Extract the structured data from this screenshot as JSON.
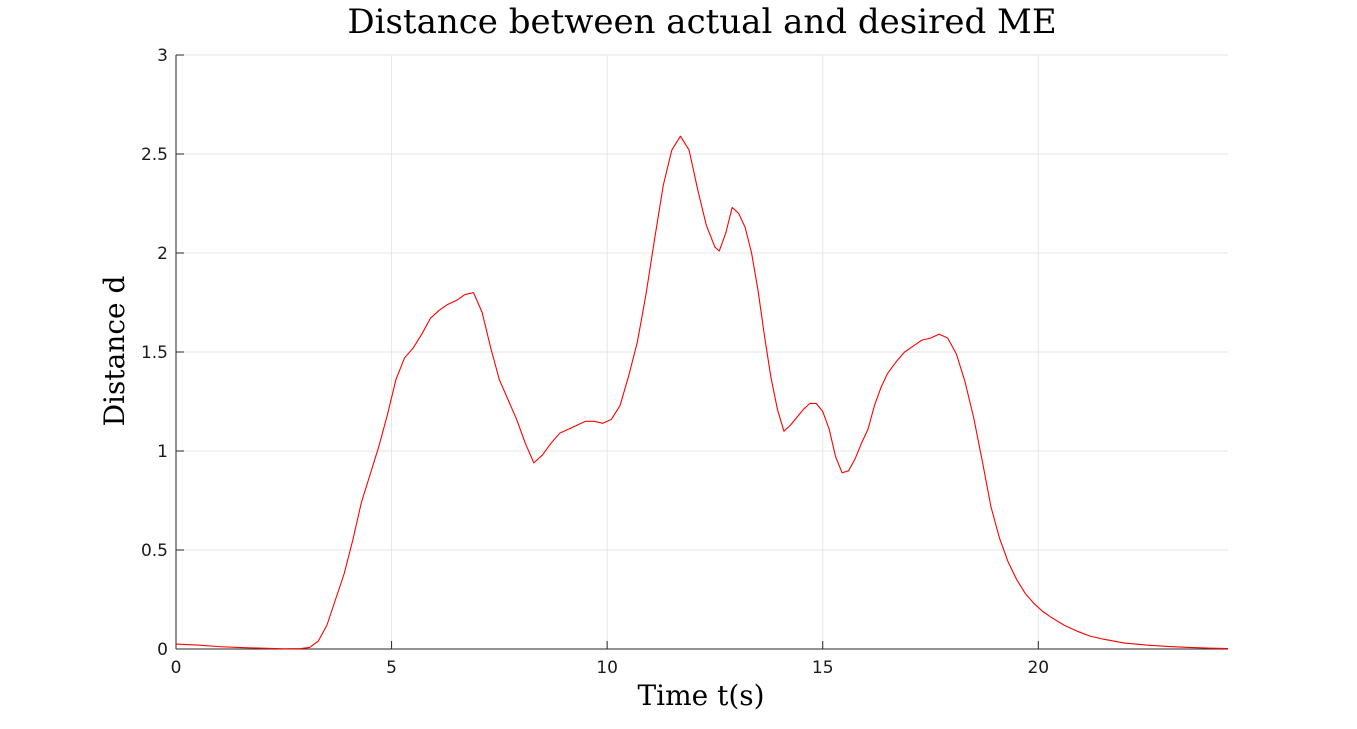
{
  "chart_data": {
    "type": "line",
    "title": "Distance between actual and desired ME",
    "xlabel": "Time t(s)",
    "ylabel": "Distance d",
    "xlim": [
      0,
      24.4
    ],
    "ylim": [
      0,
      3
    ],
    "x_ticks": [
      0,
      5,
      10,
      15,
      20
    ],
    "x_tick_labels": [
      "0",
      "5",
      "10",
      "15",
      "20"
    ],
    "y_ticks": [
      0,
      0.5,
      1,
      1.5,
      2,
      2.5,
      3
    ],
    "y_tick_labels": [
      "0",
      "0.5",
      "1",
      "1.5",
      "2",
      "2.5",
      "3"
    ],
    "grid": true,
    "line_color": "#ff0000",
    "series": [
      {
        "x": [
          0,
          0.5,
          1.0,
          1.5,
          2.0,
          2.5,
          2.9,
          3.1,
          3.3,
          3.5,
          3.7,
          3.9,
          4.1,
          4.3,
          4.5,
          4.7,
          4.9,
          5.1,
          5.3,
          5.5,
          5.7,
          5.9,
          6.1,
          6.3,
          6.5,
          6.7,
          6.9,
          7.1,
          7.3,
          7.5,
          7.7,
          7.9,
          8.1,
          8.3,
          8.5,
          8.7,
          8.9,
          9.1,
          9.3,
          9.5,
          9.7,
          9.9,
          10.1,
          10.3,
          10.5,
          10.7,
          10.9,
          11.1,
          11.3,
          11.5,
          11.7,
          11.9,
          12.1,
          12.3,
          12.5,
          12.6,
          12.75,
          12.9,
          13.05,
          13.2,
          13.35,
          13.5,
          13.65,
          13.8,
          13.95,
          14.1,
          14.25,
          14.4,
          14.55,
          14.7,
          14.85,
          15.0,
          15.15,
          15.3,
          15.45,
          15.6,
          15.75,
          15.9,
          16.05,
          16.2,
          16.35,
          16.5,
          16.7,
          16.9,
          17.1,
          17.3,
          17.5,
          17.7,
          17.9,
          18.1,
          18.3,
          18.5,
          18.7,
          18.9,
          19.1,
          19.3,
          19.5,
          19.7,
          19.9,
          20.1,
          20.3,
          20.6,
          20.9,
          21.2,
          21.5,
          22.0,
          22.5,
          23.0,
          23.5,
          24.0,
          24.4
        ],
        "y": [
          0.025,
          0.02,
          0.012,
          0.007,
          0.004,
          0.001,
          0.002,
          0.008,
          0.04,
          0.12,
          0.25,
          0.38,
          0.55,
          0.74,
          0.88,
          1.02,
          1.18,
          1.36,
          1.47,
          1.52,
          1.59,
          1.67,
          1.71,
          1.74,
          1.76,
          1.79,
          1.8,
          1.7,
          1.52,
          1.36,
          1.26,
          1.16,
          1.04,
          0.94,
          0.98,
          1.04,
          1.09,
          1.11,
          1.13,
          1.15,
          1.15,
          1.14,
          1.16,
          1.23,
          1.38,
          1.55,
          1.79,
          2.07,
          2.34,
          2.52,
          2.59,
          2.52,
          2.32,
          2.14,
          2.03,
          2.01,
          2.1,
          2.23,
          2.2,
          2.13,
          2.0,
          1.81,
          1.58,
          1.37,
          1.21,
          1.1,
          1.13,
          1.17,
          1.21,
          1.24,
          1.24,
          1.2,
          1.11,
          0.97,
          0.89,
          0.9,
          0.96,
          1.04,
          1.11,
          1.23,
          1.32,
          1.39,
          1.45,
          1.5,
          1.53,
          1.56,
          1.57,
          1.59,
          1.57,
          1.49,
          1.35,
          1.17,
          0.95,
          0.72,
          0.56,
          0.44,
          0.35,
          0.28,
          0.23,
          0.19,
          0.16,
          0.12,
          0.09,
          0.065,
          0.05,
          0.03,
          0.02,
          0.013,
          0.008,
          0.004,
          0.002
        ]
      }
    ]
  }
}
